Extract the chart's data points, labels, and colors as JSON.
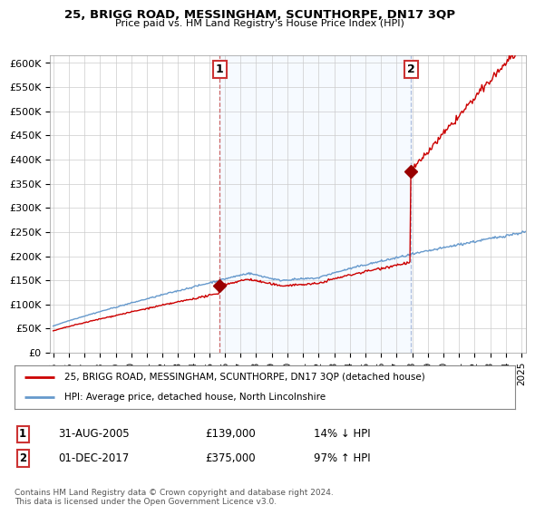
{
  "title": "25, BRIGG ROAD, MESSINGHAM, SCUNTHORPE, DN17 3QP",
  "subtitle": "Price paid vs. HM Land Registry's House Price Index (HPI)",
  "ylabel_ticks": [
    "£0",
    "£50K",
    "£100K",
    "£150K",
    "£200K",
    "£250K",
    "£300K",
    "£350K",
    "£400K",
    "£450K",
    "£500K",
    "£550K",
    "£600K"
  ],
  "ytick_values": [
    0,
    50000,
    100000,
    150000,
    200000,
    250000,
    300000,
    350000,
    400000,
    450000,
    500000,
    550000,
    600000
  ],
  "ylim": [
    0,
    615000
  ],
  "sale1": {
    "date_num": 2005.667,
    "price": 139000,
    "label": "1",
    "date_str": "31-AUG-2005",
    "hpi_rel": "14% ↓ HPI"
  },
  "sale2": {
    "date_num": 2017.917,
    "price": 375000,
    "label": "2",
    "date_str": "01-DEC-2017",
    "hpi_rel": "97% ↑ HPI"
  },
  "legend_line1": "25, BRIGG ROAD, MESSINGHAM, SCUNTHORPE, DN17 3QP (detached house)",
  "legend_line2": "HPI: Average price, detached house, North Lincolnshire",
  "footer": "Contains HM Land Registry data © Crown copyright and database right 2024.\nThis data is licensed under the Open Government Licence v3.0.",
  "line_color_red": "#cc0000",
  "line_color_blue": "#6699cc",
  "marker_color_red": "#990000",
  "background_color": "#ffffff",
  "grid_color": "#cccccc",
  "dashed_line_color_red": "#cc6666",
  "dashed_line_color_blue": "#aabbdd",
  "shade_color": "#ddeeff",
  "box_color": "#cc3333",
  "xlim_start": 1994.8,
  "xlim_end": 2025.3
}
